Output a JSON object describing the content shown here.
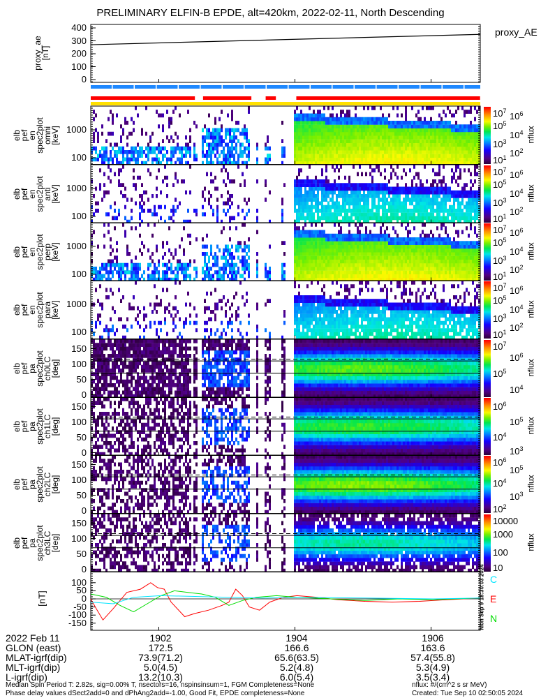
{
  "title": "PRELIMINARY ELFIN-B EPDE, alt=420km, 2022-02-11, North Descending",
  "proxy_panel": {
    "ylabel_lines": [
      "proxy_ae",
      "[nT]"
    ],
    "yticks": [
      "400",
      "300",
      "200",
      "100",
      "0"
    ],
    "legend": "proxy_AE"
  },
  "panels": [
    {
      "label_lines": [
        "elb",
        "pef",
        "en",
        "spec2plot",
        "omni",
        "[keV]"
      ],
      "yticks": [
        "1000",
        "100"
      ],
      "kind": "en",
      "variant": "omni",
      "cbar_range": [
        0.9,
        7.1
      ],
      "cbar_ticks": [
        {
          "b": "10",
          "e": "7",
          "v": 7
        },
        {
          "b": "10",
          "e": "6",
          "v": 6
        },
        {
          "b": "10",
          "e": "5",
          "v": 5
        },
        {
          "b": "10",
          "e": "4",
          "v": 4
        },
        {
          "b": "10",
          "e": "3",
          "v": 3
        },
        {
          "b": "10",
          "e": "2",
          "v": 2
        },
        {
          "b": "10",
          "e": "1",
          "v": 1
        }
      ],
      "cbar_label": "nflux"
    },
    {
      "label_lines": [
        "elb",
        "pef",
        "en",
        "spec2plot",
        "anti",
        "[keV]"
      ],
      "yticks": [
        "1000",
        "100"
      ],
      "kind": "en",
      "variant": "anti",
      "cbar_range": [
        0.9,
        7.1
      ],
      "cbar_ticks": [
        {
          "b": "10",
          "e": "7",
          "v": 7
        },
        {
          "b": "10",
          "e": "6",
          "v": 6
        },
        {
          "b": "10",
          "e": "5",
          "v": 5
        },
        {
          "b": "10",
          "e": "4",
          "v": 4
        },
        {
          "b": "10",
          "e": "3",
          "v": 3
        },
        {
          "b": "10",
          "e": "2",
          "v": 2
        },
        {
          "b": "10",
          "e": "1",
          "v": 1
        }
      ],
      "cbar_label": "nflux"
    },
    {
      "label_lines": [
        "elb",
        "pef",
        "en",
        "spec2plot",
        "perp",
        "[keV]"
      ],
      "yticks": [
        "1000",
        "100"
      ],
      "kind": "en",
      "variant": "perp",
      "cbar_range": [
        0.9,
        7.1
      ],
      "cbar_ticks": [
        {
          "b": "10",
          "e": "7",
          "v": 7
        },
        {
          "b": "10",
          "e": "6",
          "v": 6
        },
        {
          "b": "10",
          "e": "5",
          "v": 5
        },
        {
          "b": "10",
          "e": "4",
          "v": 4
        },
        {
          "b": "10",
          "e": "3",
          "v": 3
        },
        {
          "b": "10",
          "e": "2",
          "v": 2
        },
        {
          "b": "10",
          "e": "1",
          "v": 1
        }
      ],
      "cbar_label": "nflux"
    },
    {
      "label_lines": [
        "elb",
        "pef",
        "en",
        "spec2plot",
        "para",
        "[keV]"
      ],
      "yticks": [
        "1000",
        "100"
      ],
      "kind": "en",
      "variant": "para",
      "cbar_range": [
        0.9,
        7.1
      ],
      "cbar_ticks": [
        {
          "b": "10",
          "e": "7",
          "v": 7
        },
        {
          "b": "10",
          "e": "6",
          "v": 6
        },
        {
          "b": "10",
          "e": "5",
          "v": 5
        },
        {
          "b": "10",
          "e": "4",
          "v": 4
        },
        {
          "b": "10",
          "e": "3",
          "v": 3
        },
        {
          "b": "10",
          "e": "2",
          "v": 2
        },
        {
          "b": "10",
          "e": "1",
          "v": 1
        }
      ],
      "cbar_label": "nflux"
    },
    {
      "label_lines": [
        "elb",
        "pef",
        "pa",
        "spec2plot",
        "ch0LC",
        "[deg]"
      ],
      "yticks": [
        "150",
        "100",
        "50",
        "0"
      ],
      "kind": "pa",
      "gain": 1.0,
      "cbar_range": [
        3.6,
        7.1
      ],
      "cbar_ticks": [
        {
          "b": "10",
          "e": "7",
          "v": 7
        },
        {
          "b": "10",
          "e": "6",
          "v": 6
        },
        {
          "b": "10",
          "e": "5",
          "v": 5
        },
        {
          "b": "10",
          "e": "4",
          "v": 4
        }
      ],
      "cbar_label": "nflux"
    },
    {
      "label_lines": [
        "elb",
        "pef",
        "pa",
        "spec2plot",
        "ch1LC",
        "[deg]"
      ],
      "yticks": [
        "150",
        "100",
        "50",
        "0"
      ],
      "kind": "pa",
      "gain": 0.95,
      "cbar_range": [
        2.9,
        6.6
      ],
      "cbar_ticks": [
        {
          "b": "10",
          "e": "6",
          "v": 6
        },
        {
          "b": "10",
          "e": "5",
          "v": 5
        },
        {
          "b": "10",
          "e": "4",
          "v": 4
        },
        {
          "b": "10",
          "e": "3",
          "v": 3
        }
      ],
      "cbar_label": "nflux"
    },
    {
      "label_lines": [
        "elb",
        "pef",
        "pa",
        "spec2plot",
        "ch2LC",
        "[deg]"
      ],
      "yticks": [
        "150",
        "100",
        "50",
        "0"
      ],
      "kind": "pa",
      "gain": 1.05,
      "cbar_range": [
        1.8,
        6.1
      ],
      "cbar_ticks": [
        {
          "b": "10",
          "e": "6",
          "v": 6
        },
        {
          "b": "10",
          "e": "5",
          "v": 5
        },
        {
          "b": "10",
          "e": "4",
          "v": 4
        },
        {
          "b": "10",
          "e": "3",
          "v": 3
        },
        {
          "b": "10",
          "e": "2",
          "v": 2
        }
      ],
      "cbar_label": "nflux"
    },
    {
      "label_lines": [
        "elb",
        "pef",
        "pa",
        "spec2plot",
        "ch3LC",
        "[deg]"
      ],
      "yticks": [
        "150",
        "100",
        "50",
        "0"
      ],
      "kind": "pa",
      "gain": 0.8,
      "cbar_range": [
        1.0,
        4.1
      ],
      "cbar_ticks": [
        {
          "b": "10000",
          "e": "",
          "v": 4
        },
        {
          "b": "1000",
          "e": "",
          "v": 3
        },
        {
          "b": "100",
          "e": "",
          "v": 2
        },
        {
          "b": "10",
          "e": "",
          "v": 1
        }
      ],
      "cbar_label": "nflux"
    }
  ],
  "mag_panel": {
    "ylabel": "[nT]",
    "yticks": [
      "100",
      "50",
      "0",
      "-50",
      "-100",
      "-150"
    ],
    "legend": [
      {
        "label": "C",
        "color": "#00e5ff"
      },
      {
        "label": "E",
        "color": "#ff0000"
      },
      {
        "label": "N",
        "color": "#00dd00"
      }
    ],
    "side_stamp": "Mon Sep 9 18:30:03 2024"
  },
  "footer": {
    "rows": [
      {
        "label": "2022 Feb 11",
        "values": [
          "1902",
          "1904",
          "1906"
        ]
      },
      {
        "label": "GLON (east)",
        "values": [
          "172.5",
          "166.6",
          "163.6"
        ]
      },
      {
        "label": "MLAT-igrf(dip)",
        "values": [
          "73.9(71.2)",
          "65.6(63.5)",
          "57.4(55.8)"
        ]
      },
      {
        "label": "MLT-igrf(dip)",
        "values": [
          "5.0(4.5)",
          "5.2(4.8)",
          "5.3(4.9)"
        ]
      },
      {
        "label": "L-igrf(dip)",
        "values": [
          "13.2(10.3)",
          "6.0(5.4)",
          "3.5(3.4)"
        ]
      }
    ],
    "note_left_1": "Median Spin Period T: 2.82s, sig=0.00% T, nsectors=16, nspinsinsum=1, FGM Completeness=None",
    "note_left_2": "Phase delay values dSect2add=0 and dPhAng2add=-1.00, Good Fit, EPDE completeness=None",
    "note_right_1": "nflux: #/(cm^2 s sr MeV)",
    "note_right_2": "Created: Tue Sep 10 02:50:05 2024"
  },
  "chart_data": {
    "type": "line",
    "x_units": "minutes after 19:00 UT",
    "xlim": [
      0.97,
      6.69
    ],
    "xticks": [
      "1902",
      "1904",
      "1906"
    ],
    "proxy_ae": {
      "name": "proxy_AE",
      "ylim": [
        0,
        400
      ],
      "x": [
        0.97,
        6.69
      ],
      "y": [
        270,
        350
      ]
    },
    "science_zones": [
      [
        0.97,
        2.5
      ],
      [
        2.62,
        3.33
      ],
      [
        3.54,
        3.69
      ],
      [
        3.99,
        6.69
      ]
    ],
    "mag": {
      "ylim": [
        -165,
        168
      ],
      "series": [
        {
          "name": "E",
          "color": "#ff0000",
          "points": [
            [
              0.97,
              0
            ],
            [
              1.05,
              -60
            ],
            [
              1.15,
              -130
            ],
            [
              1.3,
              -60
            ],
            [
              1.5,
              40
            ],
            [
              1.7,
              60
            ],
            [
              1.85,
              100
            ],
            [
              1.95,
              70
            ],
            [
              2.05,
              60
            ],
            [
              2.15,
              -20
            ],
            [
              2.35,
              -110
            ],
            [
              2.5,
              -90
            ],
            [
              2.7,
              -70
            ],
            [
              2.9,
              -40
            ],
            [
              3.0,
              -20
            ],
            [
              3.1,
              60
            ],
            [
              3.2,
              20
            ],
            [
              3.3,
              -50
            ],
            [
              3.45,
              -70
            ],
            [
              3.6,
              -20
            ],
            [
              3.8,
              10
            ],
            [
              4.0,
              20
            ],
            [
              4.3,
              10
            ],
            [
              4.6,
              -5
            ],
            [
              5.0,
              -15
            ],
            [
              5.4,
              -20
            ],
            [
              5.8,
              -15
            ],
            [
              6.2,
              -5
            ],
            [
              6.69,
              5
            ]
          ]
        },
        {
          "name": "N",
          "color": "#00dd00",
          "points": [
            [
              0.97,
              30
            ],
            [
              1.2,
              10
            ],
            [
              1.4,
              -40
            ],
            [
              1.6,
              -80
            ],
            [
              1.8,
              -30
            ],
            [
              2.0,
              20
            ],
            [
              2.2,
              50
            ],
            [
              2.4,
              40
            ],
            [
              2.6,
              30
            ],
            [
              2.8,
              10
            ],
            [
              3.0,
              -40
            ],
            [
              3.2,
              -10
            ],
            [
              3.4,
              10
            ],
            [
              3.7,
              20
            ],
            [
              4.0,
              10
            ],
            [
              4.5,
              0
            ],
            [
              5.0,
              -10
            ],
            [
              5.5,
              0
            ],
            [
              6.0,
              -5
            ],
            [
              6.69,
              5
            ]
          ]
        },
        {
          "name": "C",
          "color": "#00e5ff",
          "points": [
            [
              0.97,
              -20
            ],
            [
              1.3,
              -30
            ],
            [
              1.6,
              10
            ],
            [
              2.0,
              20
            ],
            [
              2.5,
              15
            ],
            [
              3.0,
              10
            ],
            [
              3.5,
              5
            ],
            [
              4.0,
              10
            ],
            [
              5.0,
              5
            ],
            [
              6.0,
              0
            ],
            [
              6.69,
              5
            ]
          ]
        }
      ]
    }
  }
}
